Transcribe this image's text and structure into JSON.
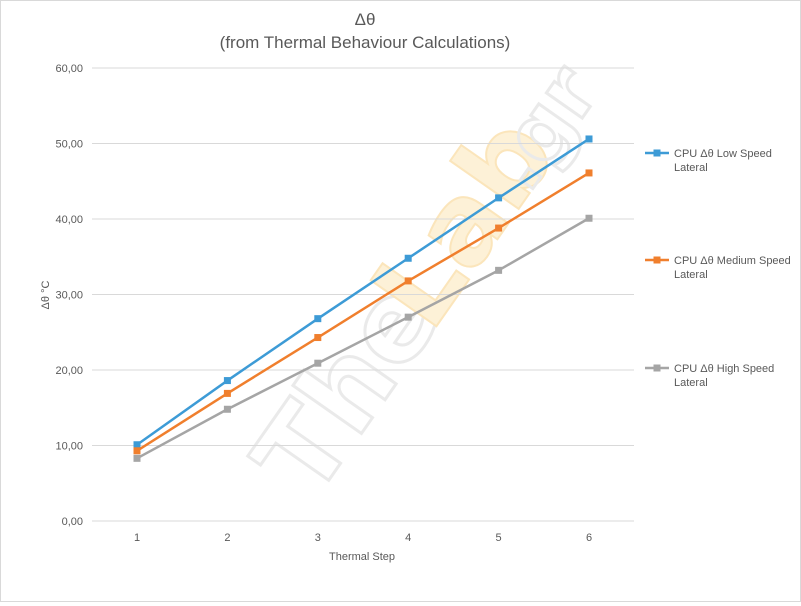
{
  "chart_data": {
    "type": "line",
    "title": "Δθ",
    "subtitle": "(from Thermal Behaviour Calculations)",
    "xlabel": "Thermal Step",
    "ylabel": "Δθ °C",
    "x": [
      1,
      2,
      3,
      4,
      5,
      6
    ],
    "x_tick_labels": [
      "1",
      "2",
      "3",
      "4",
      "5",
      "6"
    ],
    "ylim": [
      0,
      60
    ],
    "y_tick_labels": [
      "0,00",
      "10,00",
      "20,00",
      "30,00",
      "40,00",
      "50,00",
      "60,00"
    ],
    "grid": true,
    "legend_position": "right",
    "series": [
      {
        "name_line1": "CPU Δθ Low Speed",
        "name_line2": "Lateral",
        "color": "#3d9bd6",
        "values": [
          10.1,
          18.6,
          26.8,
          34.8,
          42.8,
          50.6
        ]
      },
      {
        "name_line1": "CPU Δθ Medium Speed",
        "name_line2": "Lateral",
        "color": "#f07f2d",
        "values": [
          9.3,
          16.9,
          24.3,
          31.8,
          38.8,
          46.1
        ]
      },
      {
        "name_line1": "CPU Δθ High Speed",
        "name_line2": "Lateral",
        "color": "#a5a5a5",
        "values": [
          8.3,
          14.8,
          20.9,
          27.0,
          33.2,
          40.1
        ]
      }
    ]
  },
  "watermark": {
    "text_a": "The",
    "text_b": "Lab",
    "text_c": ".gr"
  }
}
